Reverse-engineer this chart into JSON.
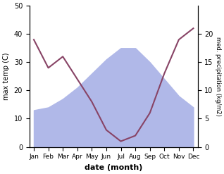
{
  "months": [
    "Jan",
    "Feb",
    "Mar",
    "Apr",
    "May",
    "Jun",
    "Jul",
    "Aug",
    "Sep",
    "Oct",
    "Nov",
    "Dec"
  ],
  "month_indices": [
    0,
    1,
    2,
    3,
    4,
    5,
    6,
    7,
    8,
    9,
    10,
    11
  ],
  "max_temp": [
    13,
    14,
    17,
    21,
    26,
    31,
    35,
    35,
    30,
    24,
    18,
    14
  ],
  "precipitation": [
    19,
    14,
    16,
    12,
    8,
    3,
    1,
    2,
    6,
    13,
    19,
    21
  ],
  "temp_ylim": [
    0,
    50
  ],
  "precip_ylim": [
    0,
    25
  ],
  "temp_fill_color": "#b0b8e8",
  "precip_line_color": "#884466",
  "xlabel": "date (month)",
  "ylabel_left": "max temp (C)",
  "ylabel_right": "med. precipitation (kg/m2)",
  "bg_color": "white"
}
